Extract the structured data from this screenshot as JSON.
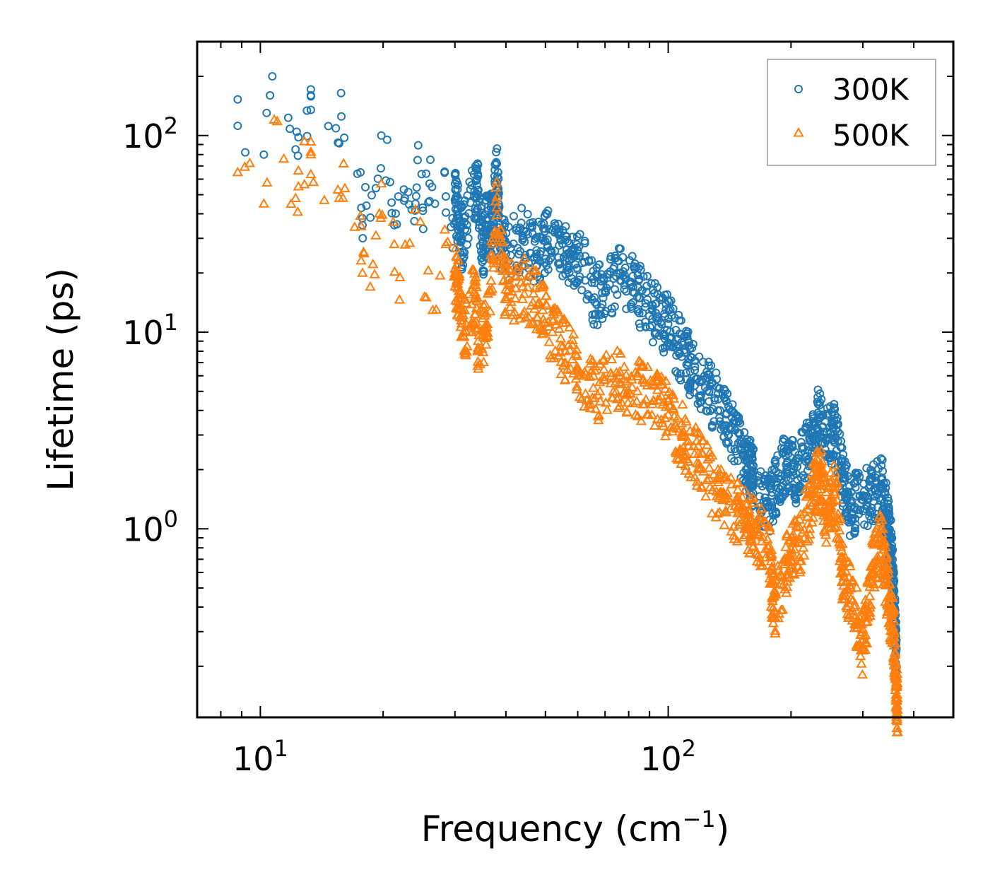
{
  "chart_data": {
    "type": "scatter",
    "title": "",
    "xlabel": "Frequency",
    "xlabel_unit": "cm",
    "xlabel_unit_exp": "−1",
    "ylabel": "Lifetime (ps)",
    "xscale": "log",
    "yscale": "log",
    "xlim": [
      7.0,
      500.0
    ],
    "ylim": [
      0.11,
      300.0
    ],
    "xticks": [
      {
        "value": 10,
        "base": "10",
        "exp": "1"
      },
      {
        "value": 100,
        "base": "10",
        "exp": "2"
      }
    ],
    "yticks": [
      {
        "value": 1,
        "base": "10",
        "exp": "0"
      },
      {
        "value": 10,
        "base": "10",
        "exp": "1"
      },
      {
        "value": 100,
        "base": "10",
        "exp": "2"
      }
    ],
    "legend_position": "top-right",
    "series": [
      {
        "name": "300K",
        "marker": "circle",
        "color": "#1f77b4",
        "points": [
          [
            8.8,
            112
          ],
          [
            10.2,
            80
          ],
          [
            10.7,
            200
          ],
          [
            12.2,
            85
          ],
          [
            12.4,
            98
          ],
          [
            13.3,
            160
          ],
          [
            13.3,
            135
          ],
          [
            15.5,
            92
          ],
          [
            15.8,
            125
          ],
          [
            17.6,
            65
          ],
          [
            17.8,
            35
          ],
          [
            18.2,
            44
          ],
          [
            19.2,
            54
          ],
          [
            19.8,
            100
          ],
          [
            20.8,
            58
          ],
          [
            21.3,
            35
          ],
          [
            21.8,
            49
          ],
          [
            22.6,
            48
          ],
          [
            23.5,
            42
          ],
          [
            24.0,
            45
          ],
          [
            24.3,
            75
          ],
          [
            25.0,
            43
          ],
          [
            25.5,
            64
          ],
          [
            26.0,
            57
          ],
          [
            26.8,
            45
          ],
          [
            28.5,
            49
          ],
          [
            29.6,
            38
          ],
          [
            30.0,
            47
          ],
          [
            30.5,
            40
          ],
          [
            31.2,
            30
          ],
          [
            33.5,
            52
          ],
          [
            34.2,
            50
          ],
          [
            35.2,
            27
          ],
          [
            36.0,
            38
          ],
          [
            37.0,
            35
          ],
          [
            38.0,
            72
          ],
          [
            38.5,
            34
          ],
          [
            40.0,
            25
          ],
          [
            44.0,
            30
          ],
          [
            47.5,
            25
          ],
          [
            50.0,
            29
          ],
          [
            54.0,
            31
          ],
          [
            57.0,
            22
          ],
          [
            60.0,
            26
          ],
          [
            66.0,
            15
          ],
          [
            70.0,
            16
          ],
          [
            76.0,
            20
          ],
          [
            82.0,
            17
          ],
          [
            88.0,
            14
          ],
          [
            94.0,
            12
          ],
          [
            100.0,
            11
          ],
          [
            106.0,
            8.5
          ],
          [
            112.0,
            7.0
          ],
          [
            118.0,
            5.8
          ],
          [
            126.0,
            5.0
          ],
          [
            134.0,
            4.0
          ],
          [
            142.0,
            3.2
          ],
          [
            150.0,
            2.6
          ],
          [
            156.0,
            2.2
          ],
          [
            160.0,
            1.9
          ],
          [
            162.0,
            1.8
          ],
          [
            176.0,
            1.3
          ],
          [
            186.0,
            1.8
          ],
          [
            196.0,
            2.2
          ],
          [
            206.0,
            1.9
          ],
          [
            220.0,
            2.5
          ],
          [
            232.0,
            3.6
          ],
          [
            244.0,
            2.9
          ],
          [
            256.0,
            3.0
          ],
          [
            268.0,
            1.8
          ],
          [
            280.0,
            1.3
          ],
          [
            300.0,
            1.4
          ],
          [
            320.0,
            1.6
          ],
          [
            336.0,
            1.6
          ],
          [
            346.0,
            1.0
          ],
          [
            352.0,
            0.75
          ],
          [
            356.0,
            0.5
          ],
          [
            360.0,
            0.3
          ],
          [
            363.0,
            0.2
          ]
        ]
      },
      {
        "name": "500K",
        "marker": "triangle",
        "color": "#ff7f0e",
        "points": [
          [
            8.8,
            65
          ],
          [
            10.2,
            45
          ],
          [
            11.0,
            118
          ],
          [
            12.2,
            48
          ],
          [
            12.4,
            55
          ],
          [
            13.3,
            93
          ],
          [
            13.3,
            80
          ],
          [
            15.5,
            53
          ],
          [
            16.0,
            72
          ],
          [
            17.6,
            39
          ],
          [
            17.8,
            20
          ],
          [
            18.6,
            17
          ],
          [
            19.2,
            31
          ],
          [
            19.8,
            57
          ],
          [
            21.3,
            28
          ],
          [
            22.0,
            19
          ],
          [
            24.0,
            42
          ],
          [
            25.5,
            15
          ],
          [
            27.0,
            13
          ],
          [
            28.5,
            28
          ],
          [
            30.0,
            20
          ],
          [
            30.5,
            17
          ],
          [
            31.5,
            10
          ],
          [
            33.5,
            16
          ],
          [
            34.2,
            9
          ],
          [
            36.0,
            11
          ],
          [
            38.0,
            43
          ],
          [
            40.0,
            15
          ],
          [
            44.0,
            17
          ],
          [
            48.0,
            14
          ],
          [
            52.0,
            10
          ],
          [
            56.0,
            8
          ],
          [
            62.0,
            6
          ],
          [
            68.0,
            5
          ],
          [
            76.0,
            6
          ],
          [
            84.0,
            5
          ],
          [
            92.0,
            4.5
          ],
          [
            100.0,
            3.8
          ],
          [
            108.0,
            3.0
          ],
          [
            116.0,
            2.4
          ],
          [
            126.0,
            1.8
          ],
          [
            136.0,
            1.4
          ],
          [
            148.0,
            1.2
          ],
          [
            156.0,
            1.1
          ],
          [
            162.0,
            1.0
          ],
          [
            176.0,
            0.8
          ],
          [
            182.0,
            0.38
          ],
          [
            196.0,
            0.7
          ],
          [
            210.0,
            0.85
          ],
          [
            226.0,
            1.5
          ],
          [
            236.0,
            2.0
          ],
          [
            244.0,
            1.2
          ],
          [
            256.0,
            1.5
          ],
          [
            268.0,
            0.6
          ],
          [
            286.0,
            0.4
          ],
          [
            300.0,
            0.25
          ],
          [
            316.0,
            0.6
          ],
          [
            332.0,
            0.9
          ],
          [
            346.0,
            0.45
          ],
          [
            356.0,
            0.3
          ],
          [
            362.0,
            0.16
          ],
          [
            365.0,
            0.12
          ]
        ]
      }
    ]
  }
}
